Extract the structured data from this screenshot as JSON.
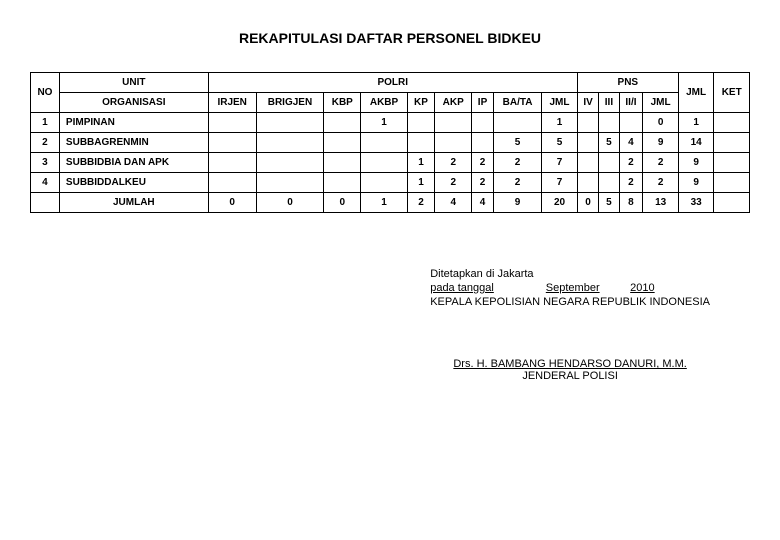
{
  "title": "REKAPITULASI DAFTAR PERSONEL BIDKEU",
  "headers": {
    "no": "NO",
    "unit": "UNIT",
    "organisasi": "ORGANISASI",
    "polri": "POLRI",
    "pns": "PNS",
    "jml_total": "JML",
    "ket": "KET",
    "irjen": "IRJEN",
    "brigjen": "BRIGJEN",
    "kbp": "KBP",
    "akbp": "AKBP",
    "kp": "KP",
    "akp": "AKP",
    "ip": "IP",
    "bata": "BA/TA",
    "jml": "JML",
    "iv": "IV",
    "iii": "III",
    "iii_i": "II/I",
    "jml2": "JML"
  },
  "rows": [
    {
      "no": "1",
      "org": "PIMPINAN",
      "irjen": "",
      "brigjen": "",
      "kbp": "",
      "akbp": "1",
      "kp": "",
      "akp": "",
      "ip": "",
      "bata": "",
      "jml": "1",
      "iv": "",
      "iii": "",
      "iii_i": "",
      "jml2": "0",
      "total": "1",
      "ket": ""
    },
    {
      "no": "2",
      "org": "SUBBAGRENMIN",
      "irjen": "",
      "brigjen": "",
      "kbp": "",
      "akbp": "",
      "kp": "",
      "akp": "",
      "ip": "",
      "bata": "5",
      "jml": "5",
      "iv": "",
      "iii": "5",
      "iii_i": "4",
      "jml2": "9",
      "total": "14",
      "ket": ""
    },
    {
      "no": "3",
      "org": "SUBBIDBIA DAN APK",
      "irjen": "",
      "brigjen": "",
      "kbp": "",
      "akbp": "",
      "kp": "1",
      "akp": "2",
      "ip": "2",
      "bata": "2",
      "jml": "7",
      "iv": "",
      "iii": "",
      "iii_i": "2",
      "jml2": "2",
      "total": "9",
      "ket": ""
    },
    {
      "no": "4",
      "org": "SUBBIDDALKEU",
      "irjen": "",
      "brigjen": "",
      "kbp": "",
      "akbp": "",
      "kp": "1",
      "akp": "2",
      "ip": "2",
      "bata": "2",
      "jml": "7",
      "iv": "",
      "iii": "",
      "iii_i": "2",
      "jml2": "2",
      "total": "9",
      "ket": ""
    }
  ],
  "totals": {
    "label": "JUMLAH",
    "irjen": "0",
    "brigjen": "0",
    "kbp": "0",
    "akbp": "1",
    "kp": "2",
    "akp": "4",
    "ip": "4",
    "bata": "9",
    "jml": "20",
    "iv": "0",
    "iii": "5",
    "iii_i": "8",
    "jml2": "13",
    "total": "33",
    "ket": ""
  },
  "signature": {
    "line1a": "Ditetapkan di Jakarta",
    "line2a": "pada tanggal",
    "line2b": "September",
    "line2c": "2010",
    "line3": "KEPALA KEPOLISIAN NEGARA REPUBLIK INDONESIA",
    "name": "Drs. H. BAMBANG HENDARSO DANURI, M.M.",
    "rank": "JENDERAL POLISI"
  },
  "style": {
    "border_color": "#000000",
    "background": "#ffffff",
    "title_fontsize": 14,
    "cell_fontsize": 10
  }
}
